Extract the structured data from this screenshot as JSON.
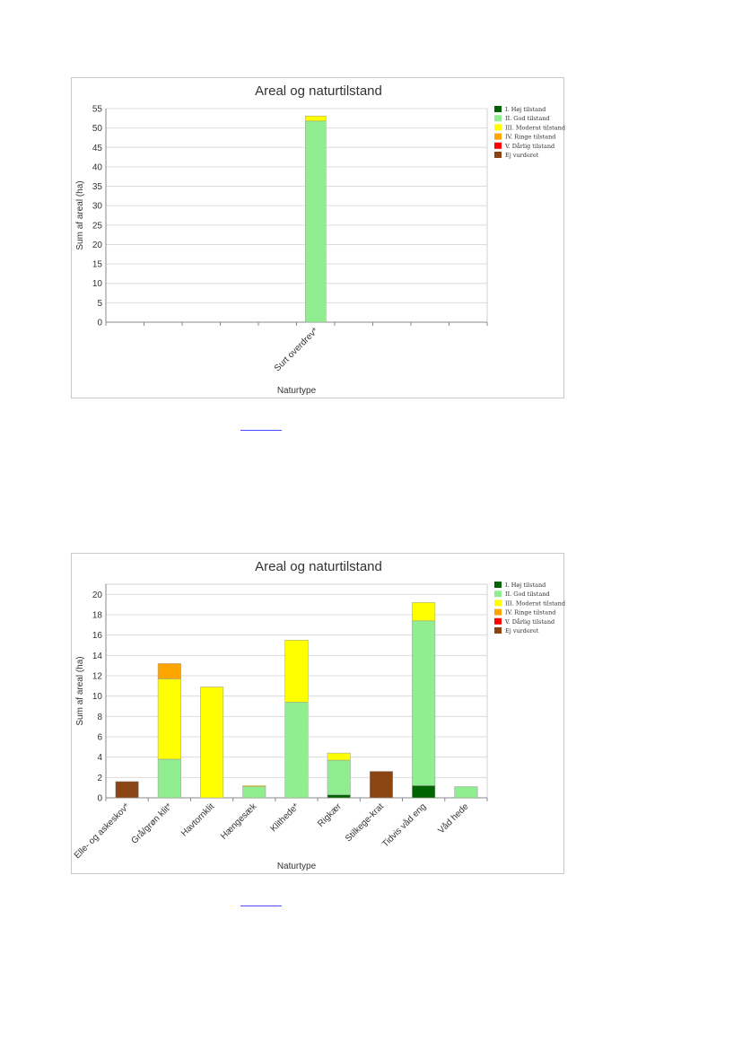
{
  "legend": {
    "items": [
      {
        "label": "I. Høj tilstand",
        "color": "#006400"
      },
      {
        "label": "II. God tilstand",
        "color": "#90ee90"
      },
      {
        "label": "III. Moderat tilstand",
        "color": "#ffff00"
      },
      {
        "label": "IV. Ringe tilstand",
        "color": "#ffa500"
      },
      {
        "label": "V. Dårlig tilstand",
        "color": "#ff0000"
      },
      {
        "label": "Ej vurderet",
        "color": "#8b4513"
      }
    ]
  },
  "chart_data": [
    {
      "type": "bar",
      "stacked": true,
      "title": "Areal og naturtilstand",
      "xlabel": "Naturtype",
      "ylabel": "Sum af areal (ha)",
      "ylim": [
        0,
        55
      ],
      "yticks": [
        0,
        5,
        10,
        15,
        20,
        25,
        30,
        35,
        40,
        45,
        50,
        55
      ],
      "grid": true,
      "legend_position": "right",
      "categories": [
        "Surt overdrev*"
      ],
      "category_slot": [
        5
      ],
      "slot_count": 10,
      "series": [
        {
          "name": "I. Høj tilstand",
          "values": [
            0
          ]
        },
        {
          "name": "II. God tilstand",
          "values": [
            51.8
          ]
        },
        {
          "name": "III. Moderat tilstand",
          "values": [
            1.3
          ]
        },
        {
          "name": "IV. Ringe tilstand",
          "values": [
            0
          ]
        },
        {
          "name": "V. Dårlig tilstand",
          "values": [
            0
          ]
        },
        {
          "name": "Ej vurderet",
          "values": [
            0
          ]
        }
      ]
    },
    {
      "type": "bar",
      "stacked": true,
      "title": "Areal og naturtilstand",
      "xlabel": "Naturtype",
      "ylabel": "Sum af areal (ha)",
      "ylim": [
        0,
        21
      ],
      "yticks": [
        0,
        2,
        4,
        6,
        8,
        10,
        12,
        14,
        16,
        18,
        20
      ],
      "grid": true,
      "legend_position": "right",
      "categories": [
        "Elle- og askeskov*",
        "Grå/grøn klit*",
        "Havtornklit",
        "Hængesæk",
        "Klithede*",
        "Rigkær",
        "Stilkege-krat",
        "Tidvis våd eng",
        "Våd hede"
      ],
      "series": [
        {
          "name": "I. Høj tilstand",
          "values": [
            0,
            0,
            0,
            0,
            0,
            0.3,
            0,
            1.2,
            0
          ]
        },
        {
          "name": "II. God tilstand",
          "values": [
            0,
            3.8,
            0,
            1.1,
            9.4,
            3.4,
            0,
            16.2,
            1.1
          ]
        },
        {
          "name": "III. Moderat tilstand",
          "values": [
            0,
            7.9,
            10.9,
            0.1,
            6.1,
            0.7,
            0,
            1.8,
            0
          ]
        },
        {
          "name": "IV. Ringe tilstand",
          "values": [
            0,
            1.5,
            0,
            0,
            0,
            0,
            0,
            0,
            0
          ]
        },
        {
          "name": "V. Dårlig tilstand",
          "values": [
            0,
            0,
            0,
            0,
            0,
            0,
            0,
            0,
            0
          ]
        },
        {
          "name": "Ej vurderet",
          "values": [
            1.6,
            0,
            0,
            0,
            0,
            0,
            2.6,
            0,
            0
          ]
        }
      ]
    }
  ]
}
